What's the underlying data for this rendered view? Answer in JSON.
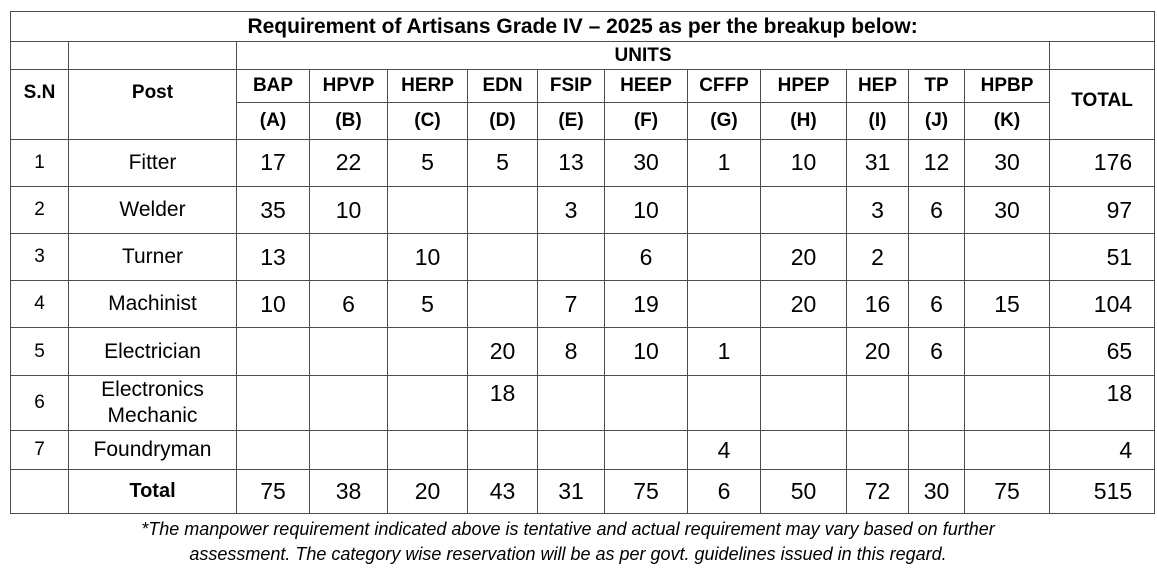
{
  "title": "Requirement of Artisans Grade IV – 2025 as per the breakup below:",
  "headers": {
    "sn": "S.N",
    "post": "Post",
    "units": "UNITS",
    "total": "TOTAL",
    "unit_names": [
      "BAP",
      "HPVP",
      "HERP",
      "EDN",
      "FSIP",
      "HEEP",
      "CFFP",
      "HPEP",
      "HEP",
      "TP",
      "HPBP"
    ],
    "unit_codes": [
      "(A)",
      "(B)",
      "(C)",
      "(D)",
      "(E)",
      "(F)",
      "(G)",
      "(H)",
      "(I)",
      "(J)",
      "(K)"
    ]
  },
  "rows": [
    {
      "sn": "1",
      "post": "Fitter",
      "values": [
        "17",
        "22",
        "5",
        "5",
        "13",
        "30",
        "1",
        "10",
        "31",
        "12",
        "30"
      ],
      "total": "176"
    },
    {
      "sn": "2",
      "post": "Welder",
      "values": [
        "35",
        "10",
        "",
        "",
        "3",
        "10",
        "",
        "",
        "3",
        "6",
        "30"
      ],
      "total": "97"
    },
    {
      "sn": "3",
      "post": "Turner",
      "values": [
        "13",
        "",
        "10",
        "",
        "",
        "6",
        "",
        "20",
        "2",
        "",
        ""
      ],
      "total": "51"
    },
    {
      "sn": "4",
      "post": "Machinist",
      "values": [
        "10",
        "6",
        "5",
        "",
        "7",
        "19",
        "",
        "20",
        "16",
        "6",
        "15"
      ],
      "total": "104"
    },
    {
      "sn": "5",
      "post": "Electrician",
      "values": [
        "",
        "",
        "",
        "20",
        "8",
        "10",
        "1",
        "",
        "20",
        "6",
        ""
      ],
      "total": "65"
    },
    {
      "sn": "6",
      "post": "Electronics Mechanic",
      "post_line1": "Electronics",
      "post_line2": "Mechanic",
      "values": [
        "",
        "",
        "",
        "18",
        "",
        "",
        "",
        "",
        "",
        "",
        ""
      ],
      "total": "18"
    },
    {
      "sn": "7",
      "post": "Foundryman",
      "values": [
        "",
        "",
        "",
        "",
        "",
        "",
        "4",
        "",
        "",
        "",
        ""
      ],
      "total": "4"
    }
  ],
  "totals": {
    "label": "Total",
    "values": [
      "75",
      "38",
      "20",
      "43",
      "31",
      "75",
      "6",
      "50",
      "72",
      "30",
      "75"
    ],
    "grand_total": "515"
  },
  "footnote": {
    "line1": "*The manpower requirement indicated above is tentative and actual requirement may vary based on further",
    "line2": "assessment. The category wise reservation will be as per govt. guidelines issued in this regard."
  }
}
